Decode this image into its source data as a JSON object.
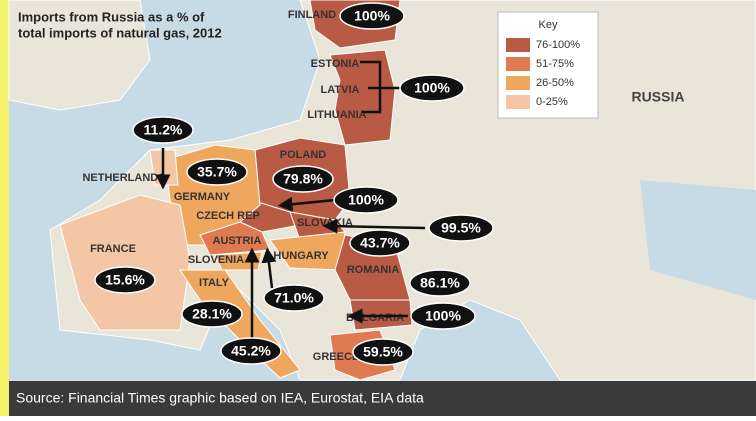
{
  "title": [
    "Imports from Russia as a % of",
    "total imports of natural gas, 2012"
  ],
  "key": {
    "title": "Key",
    "items": [
      "76-100%",
      "51-75%",
      "26-50%",
      "0-25%"
    ]
  },
  "region_label": "RUSSIA",
  "countries": [
    "FINLAND",
    "ESTONIA",
    "LATVIA",
    "LITHUANIA",
    "NETHERLANDS",
    "POLAND",
    "GERMANY",
    "CZECH REP",
    "SLOVAKIA",
    "AUSTRIA",
    "HUNGARY",
    "FRANCE",
    "SLOVENIA",
    "ROMANIA",
    "ITALY",
    "BULGARIA",
    "GREECE"
  ],
  "value_labels": [
    "100%",
    "100%",
    "11.2%",
    "35.7%",
    "79.8%",
    "100%",
    "99.5%",
    "43.7%",
    "15.6%",
    "86.1%",
    "28.1%",
    "71.0%",
    "100%",
    "45.2%",
    "59.5%"
  ],
  "source": "Source: Financial Times graphic based on IEA, Eurostat, EIA data"
}
